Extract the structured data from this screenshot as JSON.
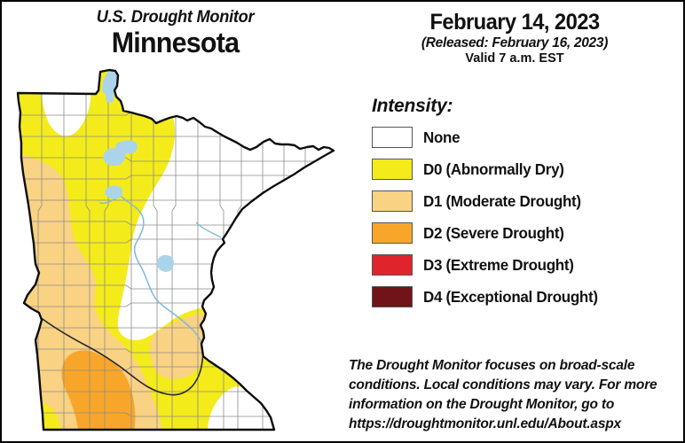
{
  "header": {
    "title": "U.S. Drought Monitor",
    "region": "Minnesota",
    "date": "February 14, 2023",
    "released": "(Released: February 16, 2023)",
    "valid": "Valid 7 a.m. EST"
  },
  "legend": {
    "heading": "Intensity:",
    "items": [
      {
        "label": "None",
        "color": "#FFFFFF"
      },
      {
        "label": "D0 (Abnormally Dry)",
        "color": "#F4EB1B"
      },
      {
        "label": "D1 (Moderate Drought)",
        "color": "#F9D283"
      },
      {
        "label": "D2 (Severe Drought)",
        "color": "#F8A62A"
      },
      {
        "label": "D3 (Extreme Drought)",
        "color": "#E0242C"
      },
      {
        "label": "D4 (Exceptional Drought)",
        "color": "#701418"
      }
    ]
  },
  "map": {
    "colors": {
      "none": "#FFFFFF",
      "d0": "#F4EB1B",
      "d1": "#F9D283",
      "d2": "#F8A62A",
      "water": "#ABD4EA",
      "river": "#7FB9DC",
      "river_dark": "#2A2A2A",
      "county_line": "#8C8C8C",
      "state_border": "#0D0D0D"
    }
  },
  "footer": {
    "disclaimer": "The Drought Monitor focuses on broad-scale conditions. Local conditions may vary. For more information on the Drought Monitor, go to https://droughtmonitor.unl.edu/About.aspx"
  }
}
